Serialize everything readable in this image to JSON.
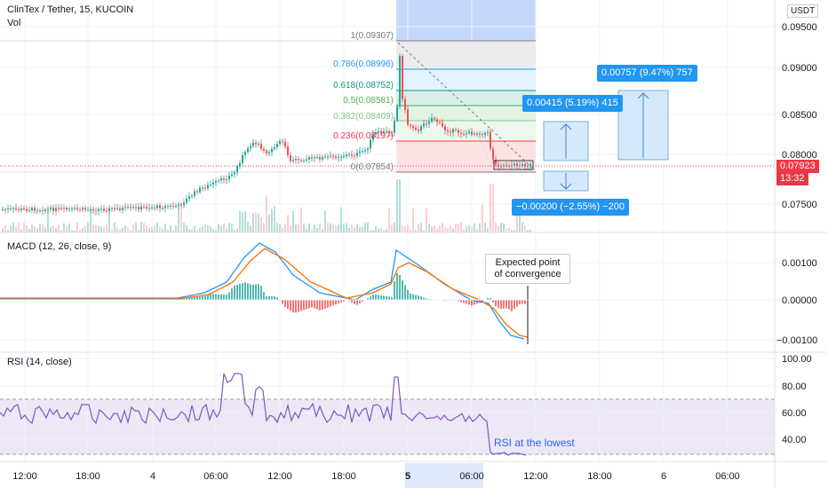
{
  "header": {
    "symbol": "ClinTex / Tether, 15, KUCOIN",
    "volume_label": "Vol",
    "currency": "USDT"
  },
  "price_badge": {
    "price": "0.07923",
    "countdown": "13:32"
  },
  "price_axis": [
    "0.09500",
    "0.09000",
    "0.08500",
    "0.08000",
    "0.07500"
  ],
  "fib": {
    "levels": [
      {
        "label": "1(0.09307)",
        "color": "#787b86"
      },
      {
        "label": "0.786(0.08996)",
        "color": "#2196f3"
      },
      {
        "label": "0.618(0.08752)",
        "color": "#089981"
      },
      {
        "label": "0.5(0.08581)",
        "color": "#4caf50"
      },
      {
        "label": "0.382(0.08409)",
        "color": "#81c784"
      },
      {
        "label": "0.236(0.08197)",
        "color": "#f23645"
      },
      {
        "label": "0(0.07854)",
        "color": "#787b86"
      }
    ]
  },
  "measure_tags": {
    "up_small": "0.00415 (5.19%) 415",
    "up_large": "0.00757 (9.47%) 757",
    "down": "−0.00200 (−2.55%) −200"
  },
  "macd": {
    "label": "MACD (12, 26, close, 9)",
    "axis": [
      "0.00100",
      "0.00000",
      "−0.00100"
    ],
    "callout": "Expected point of convergence"
  },
  "rsi": {
    "label": "RSI (14, close)",
    "axis": [
      "100.00",
      "80.00",
      "60.00",
      "40.00"
    ],
    "annotation": "RSI at the lowest"
  },
  "time_axis": [
    "12:00",
    "18:00",
    "4",
    "06:00",
    "12:00",
    "18:00",
    "5",
    "06:00",
    "12:00",
    "18:00",
    "6",
    "06:00"
  ],
  "colors": {
    "up": "#26a69a",
    "down": "#ef5350",
    "macd_line": "#2196f3",
    "signal_line": "#ff6d00",
    "rsi_line": "#7e57c2",
    "rsi_band": "#ede7f6",
    "selection": "#c5d7fa",
    "long_box": "#d6e9fb",
    "tag_bg": "#2196f3",
    "price_line": "#f23645"
  }
}
